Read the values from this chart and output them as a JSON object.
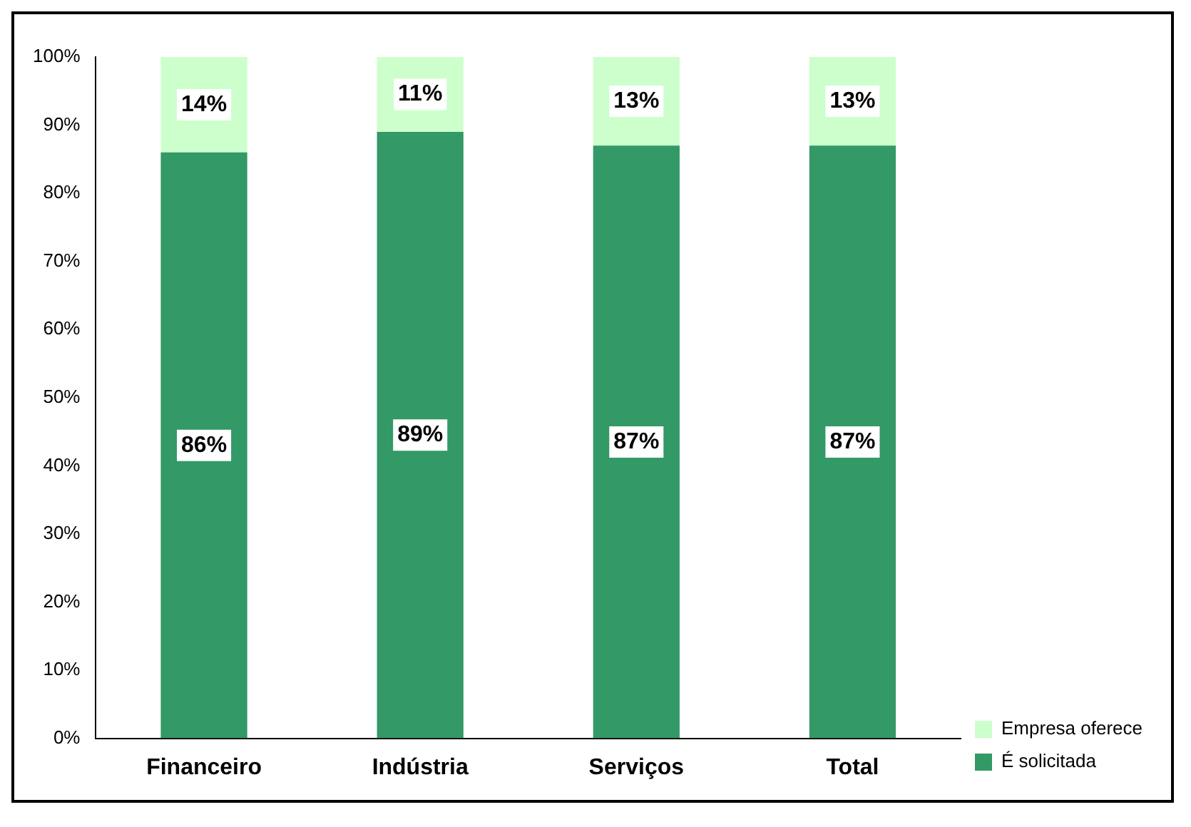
{
  "chart_data": {
    "type": "bar",
    "stacked": true,
    "categories": [
      "Financeiro",
      "Indústria",
      "Serviços",
      "Total"
    ],
    "series": [
      {
        "name": "É solicitada",
        "color": "#339966",
        "values": [
          86,
          89,
          87,
          87
        ],
        "value_labels": [
          "86%",
          "89%",
          "87%",
          "87%"
        ]
      },
      {
        "name": "Empresa oferece",
        "color": "#ccffcc",
        "values": [
          14,
          11,
          13,
          13
        ],
        "value_labels": [
          "14%",
          "11%",
          "13%",
          "13%"
        ]
      }
    ],
    "ylim": [
      0,
      100
    ],
    "yticks": [
      {
        "value": 0,
        "label": "0%"
      },
      {
        "value": 10,
        "label": "10%"
      },
      {
        "value": 20,
        "label": "20%"
      },
      {
        "value": 30,
        "label": "30%"
      },
      {
        "value": 40,
        "label": "40%"
      },
      {
        "value": 50,
        "label": "50%"
      },
      {
        "value": 60,
        "label": "60%"
      },
      {
        "value": 70,
        "label": "70%"
      },
      {
        "value": 80,
        "label": "80%"
      },
      {
        "value": 90,
        "label": "90%"
      },
      {
        "value": 100,
        "label": "100%"
      }
    ],
    "grid": false,
    "legend": "bottom right"
  }
}
